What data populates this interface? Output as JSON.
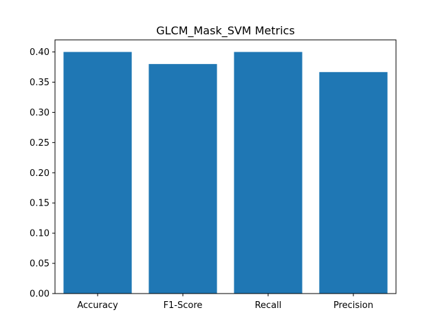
{
  "chart_data": {
    "type": "bar",
    "title": "GLCM_Mask_SVM Metrics",
    "xlabel": "",
    "ylabel": "",
    "categories": [
      "Accuracy",
      "F1-Score",
      "Recall",
      "Precision"
    ],
    "values": [
      0.4,
      0.38,
      0.4,
      0.3667
    ],
    "ylim": [
      0.0,
      0.4
    ],
    "yticks": [
      "0.00",
      "0.05",
      "0.10",
      "0.15",
      "0.20",
      "0.25",
      "0.30",
      "0.35",
      "0.40"
    ],
    "grid": false,
    "legend": "none",
    "bar_color": "#1f77b4"
  }
}
